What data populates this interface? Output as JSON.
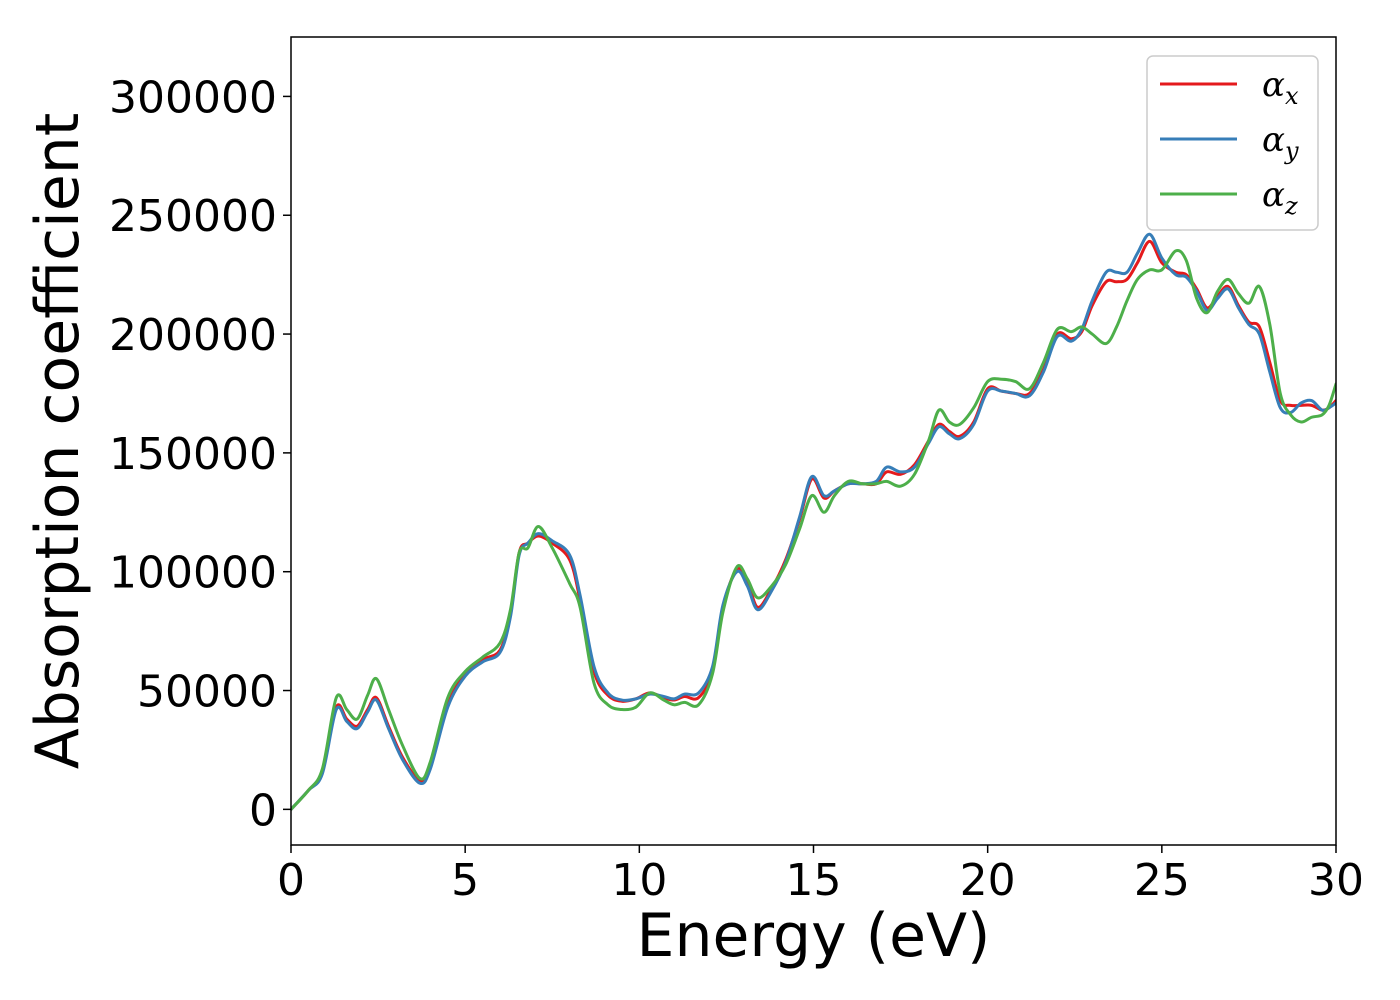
{
  "chart_data": {
    "type": "line",
    "xlabel": "Energy (eV)",
    "ylabel": "Absorption coefficient",
    "xlim": [
      0,
      30
    ],
    "ylim": [
      -15000,
      325000
    ],
    "xticks": [
      0,
      5,
      10,
      15,
      20,
      25,
      30
    ],
    "yticks": [
      0,
      50000,
      100000,
      150000,
      200000,
      250000,
      300000
    ],
    "xtick_labels": [
      "0",
      "5",
      "10",
      "15",
      "20",
      "25",
      "30"
    ],
    "ytick_labels": [
      "0",
      "50000",
      "100000",
      "150000",
      "200000",
      "250000",
      "300000"
    ],
    "grid": false,
    "legend_position": "top-right",
    "series": [
      {
        "name": "α",
        "subscript": "x",
        "color": "#e41a1c",
        "x": [
          0,
          0.5,
          0.9,
          1.3,
          1.6,
          1.9,
          2.2,
          2.45,
          2.8,
          3.2,
          3.7,
          4.0,
          4.5,
          5.0,
          5.5,
          6.0,
          6.3,
          6.55,
          6.8,
          7.1,
          7.5,
          8.0,
          8.3,
          8.7,
          9.1,
          9.5,
          9.9,
          10.3,
          10.7,
          11.0,
          11.3,
          11.7,
          12.1,
          12.4,
          12.8,
          13.1,
          13.4,
          13.8,
          14.2,
          14.6,
          14.95,
          15.3,
          15.6,
          16.0,
          16.4,
          16.8,
          17.1,
          17.5,
          17.9,
          18.3,
          18.6,
          18.9,
          19.2,
          19.6,
          20.0,
          20.4,
          20.8,
          21.2,
          21.6,
          22.0,
          22.4,
          22.7,
          23.0,
          23.4,
          23.7,
          24.0,
          24.3,
          24.65,
          25.0,
          25.4,
          25.7,
          26.0,
          26.3,
          26.6,
          26.9,
          27.2,
          27.5,
          27.8,
          28.1,
          28.4,
          28.7,
          29.0,
          29.3,
          29.6,
          29.8,
          30.0
        ],
        "y": [
          0,
          8000,
          16000,
          43000,
          38000,
          35000,
          42000,
          47000,
          35000,
          22000,
          12000,
          18000,
          44000,
          57000,
          63000,
          67000,
          82000,
          108000,
          112000,
          115000,
          112000,
          105000,
          88000,
          58000,
          48000,
          45500,
          46500,
          49000,
          47000,
          46000,
          47500,
          47000,
          58000,
          85000,
          101000,
          96000,
          85000,
          93000,
          105000,
          122000,
          139000,
          131000,
          134000,
          137000,
          137000,
          137000,
          142000,
          141000,
          145000,
          155000,
          162000,
          159000,
          157000,
          163000,
          177000,
          176000,
          175000,
          175000,
          185000,
          200000,
          198000,
          201000,
          212000,
          222000,
          222000,
          223000,
          230000,
          239000,
          230000,
          226000,
          225000,
          219000,
          211000,
          216000,
          220000,
          212000,
          205000,
          203000,
          188000,
          172000,
          170000,
          170000,
          170000,
          168000,
          169000,
          172000
        ]
      },
      {
        "name": "α",
        "subscript": "y",
        "color": "#377eb8",
        "x": [
          0,
          0.5,
          0.9,
          1.3,
          1.6,
          1.9,
          2.2,
          2.45,
          2.8,
          3.2,
          3.7,
          4.0,
          4.5,
          5.0,
          5.5,
          6.0,
          6.3,
          6.55,
          6.8,
          7.1,
          7.5,
          8.0,
          8.3,
          8.7,
          9.1,
          9.5,
          9.9,
          10.3,
          10.7,
          11.0,
          11.3,
          11.7,
          12.1,
          12.4,
          12.8,
          13.1,
          13.4,
          13.8,
          14.2,
          14.6,
          14.95,
          15.3,
          15.6,
          16.0,
          16.4,
          16.8,
          17.1,
          17.5,
          17.9,
          18.3,
          18.6,
          18.9,
          19.2,
          19.6,
          20.0,
          20.4,
          20.8,
          21.2,
          21.6,
          22.0,
          22.4,
          22.7,
          23.0,
          23.4,
          23.7,
          24.0,
          24.3,
          24.65,
          25.0,
          25.4,
          25.7,
          26.0,
          26.3,
          26.6,
          26.9,
          27.2,
          27.5,
          27.8,
          28.1,
          28.4,
          28.7,
          29.0,
          29.3,
          29.6,
          29.8,
          30.0
        ],
        "y": [
          0,
          8000,
          15000,
          42000,
          37000,
          34000,
          41000,
          46000,
          34000,
          21000,
          11000,
          17000,
          43000,
          56000,
          62000,
          66000,
          81000,
          107000,
          112000,
          116000,
          113000,
          107000,
          90000,
          60000,
          49000,
          46000,
          46500,
          48500,
          47500,
          46500,
          48500,
          49000,
          60000,
          86000,
          100000,
          94000,
          84000,
          92000,
          104000,
          123000,
          140000,
          132000,
          134000,
          137000,
          137000,
          138000,
          144000,
          142000,
          144000,
          154000,
          161000,
          158000,
          156000,
          162000,
          176000,
          176000,
          175000,
          174000,
          184000,
          199000,
          197000,
          202000,
          214000,
          226000,
          226000,
          226000,
          234000,
          242000,
          232000,
          225000,
          224000,
          218000,
          210000,
          215000,
          219000,
          211000,
          204000,
          200000,
          184000,
          169000,
          167000,
          171000,
          172000,
          168000,
          169000,
          171000
        ]
      },
      {
        "name": "α",
        "subscript": "z",
        "color": "#4daf4a",
        "x": [
          0,
          0.5,
          0.9,
          1.3,
          1.6,
          1.9,
          2.2,
          2.45,
          2.8,
          3.2,
          3.7,
          4.0,
          4.5,
          5.0,
          5.5,
          6.0,
          6.3,
          6.55,
          6.8,
          7.1,
          7.5,
          8.0,
          8.3,
          8.7,
          9.1,
          9.5,
          9.9,
          10.3,
          10.7,
          11.0,
          11.3,
          11.7,
          12.1,
          12.4,
          12.8,
          13.1,
          13.4,
          13.8,
          14.2,
          14.6,
          14.95,
          15.3,
          15.6,
          16.0,
          16.4,
          16.8,
          17.1,
          17.5,
          17.9,
          18.3,
          18.6,
          18.9,
          19.2,
          19.6,
          20.0,
          20.4,
          20.8,
          21.2,
          21.6,
          22.0,
          22.4,
          22.7,
          23.0,
          23.4,
          23.7,
          24.0,
          24.3,
          24.65,
          25.0,
          25.4,
          25.7,
          26.0,
          26.3,
          26.6,
          26.9,
          27.2,
          27.5,
          27.8,
          28.1,
          28.4,
          28.7,
          29.0,
          29.3,
          29.6,
          29.8,
          30.0
        ],
        "y": [
          0,
          8000,
          17000,
          47000,
          42000,
          38000,
          48000,
          55000,
          42000,
          27000,
          13000,
          20000,
          47000,
          58000,
          64000,
          70000,
          84000,
          108000,
          110000,
          119000,
          110000,
          95000,
          85000,
          53000,
          44000,
          42000,
          43000,
          49000,
          46000,
          44000,
          45000,
          44000,
          57000,
          83000,
          102000,
          97000,
          89000,
          94000,
          103000,
          118000,
          132000,
          125000,
          132000,
          138000,
          137000,
          137000,
          138000,
          136000,
          141000,
          155000,
          168000,
          163000,
          162000,
          169000,
          180000,
          181000,
          180000,
          177000,
          188000,
          202000,
          201000,
          203000,
          200000,
          196000,
          203000,
          214000,
          223000,
          227000,
          227000,
          235000,
          231000,
          215000,
          209000,
          218000,
          223000,
          217000,
          213000,
          220000,
          204000,
          175000,
          166000,
          163000,
          165000,
          166000,
          170000,
          179000
        ]
      }
    ]
  }
}
